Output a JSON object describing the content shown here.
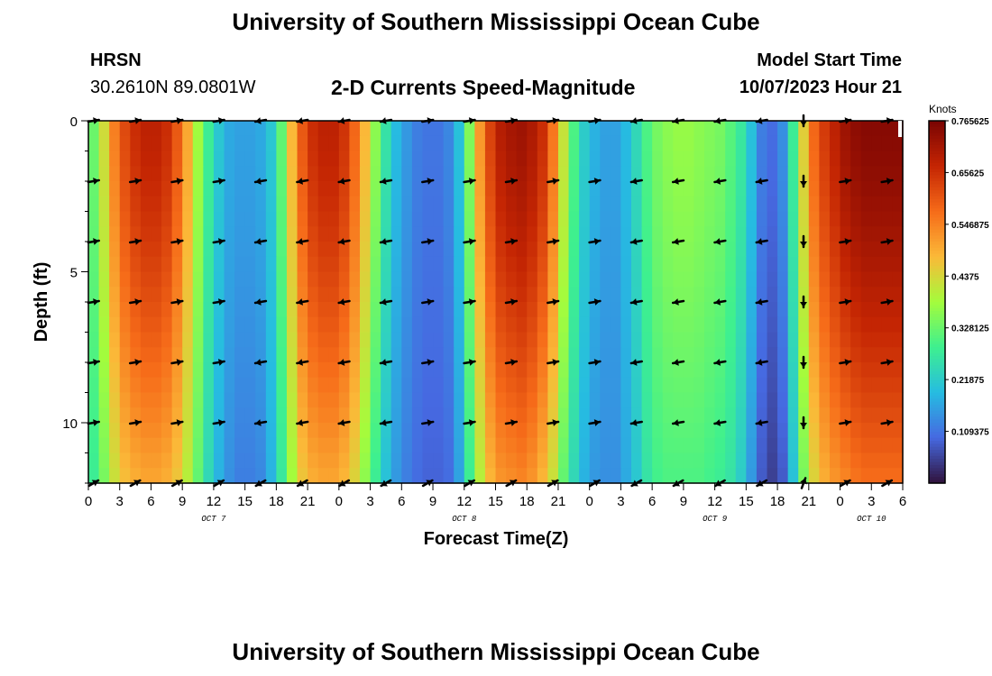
{
  "header": {
    "title": "University of Southern Mississippi Ocean Cube",
    "station": "HRSN",
    "coordinates": "30.2610N  89.0801W",
    "subtitle": "2-D Currents Speed-Magnitude",
    "model_start_label": "Model Start Time",
    "model_start_value": "10/07/2023 Hour 21",
    "footer_title": "University of Southern Mississippi Ocean Cube"
  },
  "chart_data": {
    "type": "heatmap",
    "title": "2-D Currents Speed-Magnitude",
    "xlabel": "Forecast Time(Z)",
    "ylabel": "Depth (ft)",
    "x_ticks": [
      "0",
      "3",
      "6",
      "9",
      "12",
      "15",
      "18",
      "21",
      "0",
      "3",
      "6",
      "9",
      "12",
      "15",
      "18",
      "21",
      "0",
      "3",
      "6",
      "9",
      "12",
      "15",
      "18",
      "21",
      "0",
      "3",
      "6"
    ],
    "x_range_hours": [
      0,
      78
    ],
    "day_labels": [
      {
        "label": "OCT 7",
        "hour": 12
      },
      {
        "label": "OCT 8",
        "hour": 36
      },
      {
        "label": "OCT 9",
        "hour": 60
      },
      {
        "label": "OCT 10",
        "hour": 75
      }
    ],
    "y_ticks": [
      0,
      5,
      10
    ],
    "ylim": [
      0,
      12
    ],
    "colorbar": {
      "unit": "Knots",
      "min": 0,
      "max": 0.765625,
      "tick_labels": [
        "0.765625",
        "0.65625",
        "0.546875",
        "0.4375",
        "0.328125",
        "0.21875",
        "0.109375"
      ],
      "colors": [
        "#30123b",
        "#4669e1",
        "#26bce1",
        "#3ef08f",
        "#a4fc3c",
        "#fbb938",
        "#f66b19",
        "#c42503",
        "#7a0403"
      ]
    },
    "speed_profile": {
      "hours": [
        0,
        1,
        2,
        3,
        4,
        5,
        6,
        7,
        8,
        9,
        10,
        11,
        12,
        13,
        14,
        15,
        16,
        17,
        18,
        19,
        20,
        21,
        22,
        23,
        24,
        25,
        26,
        27,
        28,
        29,
        30,
        31,
        32,
        33,
        34,
        35,
        36,
        37,
        38,
        39,
        40,
        41,
        42,
        43,
        44,
        45,
        46,
        47,
        48,
        49,
        50,
        51,
        52,
        53,
        54,
        55,
        56,
        57,
        58,
        59,
        60,
        61,
        62,
        63,
        64,
        65,
        66,
        67,
        68,
        69,
        70,
        71,
        72,
        73,
        74,
        75,
        76,
        77,
        78
      ],
      "surface": [
        0.33,
        0.43,
        0.55,
        0.62,
        0.66,
        0.68,
        0.68,
        0.66,
        0.6,
        0.5,
        0.38,
        0.28,
        0.21,
        0.17,
        0.16,
        0.16,
        0.17,
        0.21,
        0.32,
        0.48,
        0.6,
        0.66,
        0.68,
        0.68,
        0.65,
        0.58,
        0.48,
        0.36,
        0.26,
        0.19,
        0.15,
        0.12,
        0.11,
        0.11,
        0.13,
        0.2,
        0.35,
        0.52,
        0.63,
        0.69,
        0.71,
        0.72,
        0.7,
        0.66,
        0.56,
        0.42,
        0.3,
        0.22,
        0.18,
        0.16,
        0.16,
        0.19,
        0.24,
        0.3,
        0.34,
        0.36,
        0.37,
        0.37,
        0.36,
        0.35,
        0.34,
        0.31,
        0.27,
        0.2,
        0.12,
        0.1,
        0.14,
        0.28,
        0.45,
        0.58,
        0.64,
        0.68,
        0.72,
        0.74,
        0.75,
        0.75,
        0.75,
        0.75,
        0.75
      ],
      "bottom": [
        0.28,
        0.34,
        0.42,
        0.47,
        0.49,
        0.5,
        0.5,
        0.49,
        0.46,
        0.4,
        0.32,
        0.24,
        0.18,
        0.14,
        0.12,
        0.12,
        0.13,
        0.18,
        0.27,
        0.38,
        0.46,
        0.49,
        0.5,
        0.5,
        0.48,
        0.44,
        0.36,
        0.28,
        0.2,
        0.15,
        0.12,
        0.1,
        0.09,
        0.09,
        0.1,
        0.16,
        0.28,
        0.4,
        0.48,
        0.52,
        0.53,
        0.54,
        0.52,
        0.48,
        0.42,
        0.32,
        0.24,
        0.18,
        0.15,
        0.14,
        0.14,
        0.17,
        0.21,
        0.26,
        0.29,
        0.3,
        0.3,
        0.3,
        0.3,
        0.29,
        0.28,
        0.26,
        0.22,
        0.15,
        0.08,
        0.05,
        0.08,
        0.2,
        0.34,
        0.44,
        0.49,
        0.52,
        0.54,
        0.56,
        0.57,
        0.57,
        0.57,
        0.57,
        0.57
      ]
    },
    "vector_hours": [
      0.5,
      4.5,
      8.5,
      12.5,
      16.5,
      20.5,
      24.5,
      28.5,
      32.5,
      36.5,
      40.5,
      44.5,
      48.5,
      52.5,
      56.5,
      60.5,
      64.5,
      68.5,
      72.5,
      76.5
    ],
    "vector_depths_ft": [
      0,
      2,
      4,
      6,
      8,
      10,
      12
    ],
    "vector_directions_deg": [
      80,
      80,
      80,
      80,
      260,
      260,
      260,
      260,
      80,
      80,
      80,
      80,
      80,
      260,
      260,
      260,
      260,
      180,
      80,
      80
    ],
    "near_surface_vector_directions_deg": [
      80,
      80,
      80,
      80,
      260,
      260,
      260,
      260,
      80,
      80,
      80,
      80,
      80,
      260,
      260,
      260,
      260,
      180,
      80,
      80
    ],
    "bottom_layer_vector_directions_deg": [
      60,
      60,
      60,
      60,
      240,
      240,
      240,
      240,
      60,
      60,
      60,
      60,
      60,
      240,
      240,
      240,
      240,
      20,
      60,
      60
    ]
  }
}
